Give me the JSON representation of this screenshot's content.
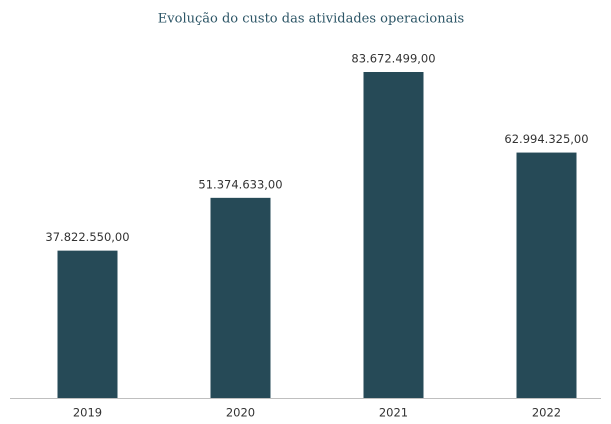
{
  "chart_data": {
    "type": "bar",
    "title": "Evolução do custo das atividades operacionais",
    "categories": [
      "2019",
      "2020",
      "2021",
      "2022"
    ],
    "values": [
      37822550,
      51374633,
      83672499,
      62994325
    ],
    "value_labels": [
      "37.822.550,00",
      "51.374.633,00",
      "83.672.499,00",
      "62.994.325,00"
    ],
    "color": "#264a57"
  }
}
